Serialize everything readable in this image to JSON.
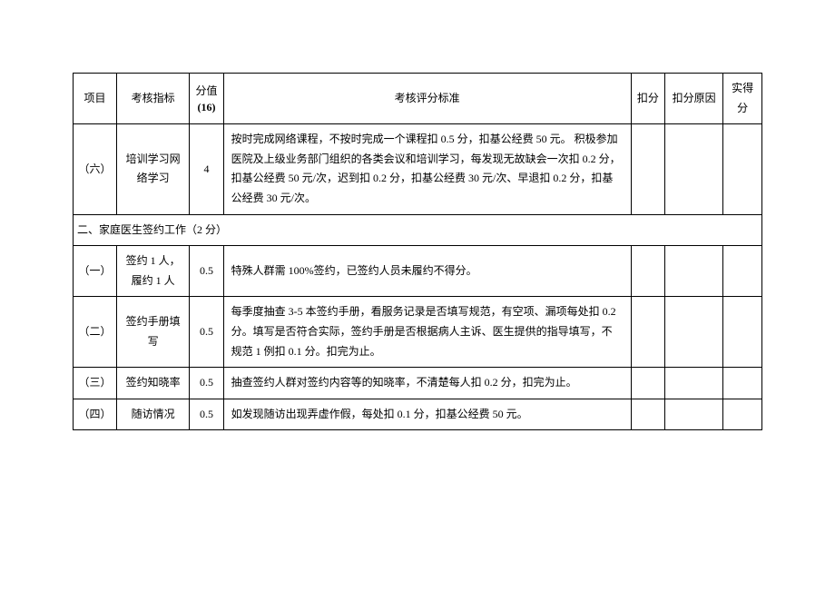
{
  "header": {
    "project": "项目",
    "indicator": "考核指标",
    "score": "分值",
    "score_sub": "(16)",
    "criteria": "考核评分标准",
    "deduct": "扣分",
    "reason": "扣分原因",
    "actual": "实得分"
  },
  "row1": {
    "project": "（六）",
    "indicator": "培训学习网络学习",
    "score": "4",
    "criteria": "按时完成网络课程，不按时完成一个课程扣 0.5 分，扣基公经费 50 元。\n积极参加医院及上级业务部门组织的各类会议和培训学习，每发现无故缺会一次扣 0.2 分，扣基公经费 50 元/次，迟到扣 0.2 分，扣基公经费 30 元/次、早退扣 0.2 分，扣基公经费 30 元/次。"
  },
  "section2": {
    "title": "二、家庭医生签约工作（2 分）"
  },
  "row2_1": {
    "project": "（一）",
    "indicator": "签约 1 人，履约 1 人",
    "score": "0.5",
    "criteria": "特殊人群需 100%签约，已签约人员未履约不得分。"
  },
  "row2_2": {
    "project": "（二）",
    "indicator": "签约手册填写",
    "score": "0.5",
    "criteria": "每季度抽查 3-5 本签约手册，看服务记录是否填写规范，有空项、漏项每处扣 0.2 分。填写是否符合实际，签约手册是否根据病人主诉、医生提供的指导填写，不规范 1 例扣 0.1 分。扣完为止。"
  },
  "row2_3": {
    "project": "（三）",
    "indicator": "签约知晓率",
    "score": "0.5",
    "criteria": "抽查签约人群对签约内容等的知晓率，不清楚每人扣 0.2 分，扣完为止。"
  },
  "row2_4": {
    "project": "（四）",
    "indicator": "随访情况",
    "score": "0.5",
    "criteria": "如发现随访出现弄虚作假，每处扣 0.1 分，扣基公经费 50 元。"
  }
}
